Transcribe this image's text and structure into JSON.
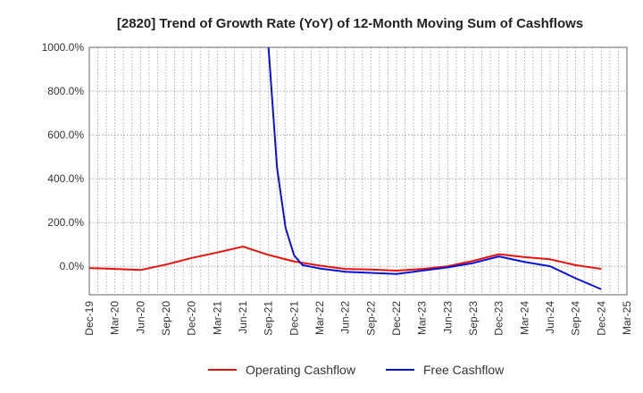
{
  "chart_data": {
    "type": "line",
    "title": "[2820]  Trend of Growth Rate (YoY) of 12-Month Moving Sum of Cashflows",
    "xlabel": "",
    "ylabel": "",
    "x_ticks": [
      "Dec-19",
      "Mar-20",
      "Jun-20",
      "Sep-20",
      "Dec-20",
      "Mar-21",
      "Jun-21",
      "Sep-21",
      "Dec-21",
      "Mar-22",
      "Jun-22",
      "Sep-22",
      "Dec-22",
      "Mar-23",
      "Jun-23",
      "Sep-23",
      "Dec-23",
      "Mar-24",
      "Jun-24",
      "Sep-24",
      "Dec-24",
      "Mar-25"
    ],
    "y_ticks": [
      "0.0%",
      "200.0%",
      "400.0%",
      "600.0%",
      "800.0%",
      "1000.0%"
    ],
    "y_tick_values": [
      0,
      200,
      400,
      600,
      800,
      1000
    ],
    "ylim": [
      -130,
      1000
    ],
    "x_range": [
      "Dec-19",
      "Mar-25"
    ],
    "grid": "dotted",
    "legend_position": "bottom",
    "series": [
      {
        "name": "Operating Cashflow",
        "color": "#e8120c",
        "points": [
          [
            "Dec-19",
            -8
          ],
          [
            "Mar-20",
            -12
          ],
          [
            "Jun-20",
            -17
          ],
          [
            "Sep-20",
            8
          ],
          [
            "Dec-20",
            38
          ],
          [
            "Mar-21",
            63
          ],
          [
            "Jun-21",
            90
          ],
          [
            "Sep-21",
            52
          ],
          [
            "Dec-21",
            22
          ],
          [
            "Mar-22",
            3
          ],
          [
            "Jun-22",
            -12
          ],
          [
            "Sep-22",
            -15
          ],
          [
            "Dec-22",
            -20
          ],
          [
            "Mar-23",
            -12
          ],
          [
            "Jun-23",
            0
          ],
          [
            "Sep-23",
            25
          ],
          [
            "Dec-23",
            55
          ],
          [
            "Mar-24",
            42
          ],
          [
            "Jun-24",
            32
          ],
          [
            "Sep-24",
            5
          ],
          [
            "Dec-24",
            -12
          ]
        ]
      },
      {
        "name": "Free Cashflow",
        "color": "#0a12d8",
        "points": [
          [
            "Sep-21",
            1000
          ],
          [
            "Oct-21",
            450
          ],
          [
            "Nov-21",
            175
          ],
          [
            "Dec-21",
            50
          ],
          [
            "Jan-22",
            5
          ],
          [
            "Mar-22",
            -10
          ],
          [
            "Jun-22",
            -25
          ],
          [
            "Sep-22",
            -30
          ],
          [
            "Dec-22",
            -35
          ],
          [
            "Mar-23",
            -20
          ],
          [
            "Jun-23",
            -5
          ],
          [
            "Sep-23",
            15
          ],
          [
            "Dec-23",
            45
          ],
          [
            "Mar-24",
            20
          ],
          [
            "Jun-24",
            0
          ],
          [
            "Sep-24",
            -55
          ],
          [
            "Dec-24",
            -105
          ]
        ]
      }
    ]
  }
}
